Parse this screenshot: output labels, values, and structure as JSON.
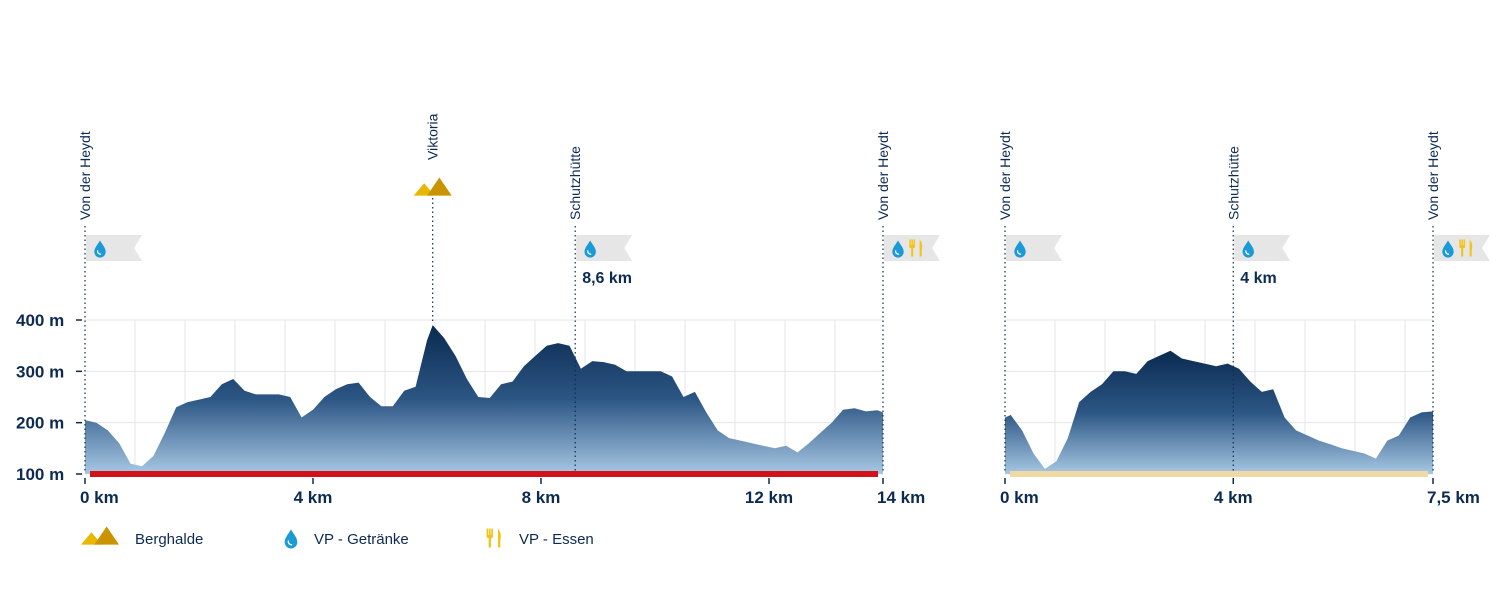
{
  "colors": {
    "profile_dark": "#0a2a50",
    "profile_light": "#8fb6d8",
    "text": "#0d2b52",
    "grid": "#e3e6ea",
    "route1_bar": "#d0121b",
    "route2_bar": "#efd9a4",
    "water": "#1a9ad6",
    "food": "#f2c418",
    "heap": "#d9a800",
    "flag": "#e6e6e6"
  },
  "legend": [
    {
      "icon": "heap",
      "label": "Berghalde"
    },
    {
      "icon": "water",
      "label": "VP - Getränke"
    },
    {
      "icon": "food",
      "label": "VP - Essen"
    }
  ],
  "chart_data": [
    {
      "type": "area",
      "title": "",
      "xlabel": "",
      "ylabel": "",
      "xlim": [
        0,
        14
      ],
      "ylim": [
        100,
        400
      ],
      "y_ticks": [
        {
          "value": 100,
          "label": "100 m"
        },
        {
          "value": 200,
          "label": "200 m"
        },
        {
          "value": 300,
          "label": "300 m"
        },
        {
          "value": 400,
          "label": "400 m"
        }
      ],
      "x_ticks": [
        {
          "value": 0,
          "label": "0 km"
        },
        {
          "value": 4,
          "label": "4 km"
        },
        {
          "value": 8,
          "label": "8 km"
        },
        {
          "value": 12,
          "label": "12 km"
        },
        {
          "value": 14,
          "label": "14 km"
        }
      ],
      "grid": true,
      "bar_color": "route1_bar",
      "markers": [
        {
          "km": 0,
          "name": "Von der Heydt",
          "icons": [
            "water"
          ],
          "km_label": ""
        },
        {
          "km": 6.1,
          "name": "Viktoria",
          "icons": [
            "heap"
          ],
          "km_label": ""
        },
        {
          "km": 8.6,
          "name": "Schutzhütte",
          "icons": [
            "water"
          ],
          "km_label": "8,6 km"
        },
        {
          "km": 14,
          "name": "Von der Heydt",
          "icons": [
            "water",
            "food"
          ],
          "km_label": ""
        }
      ],
      "x": [
        0,
        0.2,
        0.4,
        0.6,
        0.8,
        1.0,
        1.2,
        1.4,
        1.6,
        1.8,
        2.0,
        2.2,
        2.4,
        2.6,
        2.8,
        3.0,
        3.2,
        3.4,
        3.6,
        3.8,
        4.0,
        4.2,
        4.4,
        4.6,
        4.8,
        5.0,
        5.2,
        5.4,
        5.6,
        5.8,
        6.0,
        6.1,
        6.3,
        6.5,
        6.7,
        6.9,
        7.1,
        7.3,
        7.5,
        7.7,
        7.9,
        8.1,
        8.3,
        8.5,
        8.7,
        8.9,
        9.1,
        9.3,
        9.5,
        9.7,
        9.9,
        10.1,
        10.3,
        10.5,
        10.7,
        10.9,
        11.1,
        11.3,
        11.5,
        11.7,
        11.9,
        12.1,
        12.3,
        12.5,
        12.7,
        12.9,
        13.1,
        13.3,
        13.5,
        13.7,
        13.9,
        14.0
      ],
      "elevation": [
        205,
        200,
        185,
        160,
        120,
        115,
        135,
        180,
        230,
        240,
        245,
        250,
        275,
        285,
        262,
        255,
        255,
        255,
        250,
        210,
        225,
        250,
        265,
        275,
        278,
        250,
        232,
        232,
        262,
        270,
        360,
        390,
        365,
        330,
        285,
        250,
        248,
        275,
        280,
        310,
        330,
        350,
        355,
        350,
        305,
        320,
        318,
        313,
        300,
        300,
        300,
        300,
        290,
        250,
        260,
        220,
        185,
        170,
        165,
        160,
        155,
        150,
        155,
        142,
        160,
        180,
        200,
        225,
        228,
        222,
        224,
        220
      ]
    },
    {
      "type": "area",
      "title": "",
      "xlabel": "",
      "ylabel": "",
      "xlim": [
        0,
        7.5
      ],
      "ylim": [
        100,
        400
      ],
      "x_ticks": [
        {
          "value": 0,
          "label": "0 km"
        },
        {
          "value": 4,
          "label": "4 km"
        },
        {
          "value": 7.5,
          "label": "7,5 km"
        }
      ],
      "grid": true,
      "bar_color": "route2_bar",
      "markers": [
        {
          "km": 0,
          "name": "Von der Heydt",
          "icons": [
            "water"
          ],
          "km_label": ""
        },
        {
          "km": 4,
          "name": "Schutzhütte",
          "icons": [
            "water"
          ],
          "km_label": "4 km"
        },
        {
          "km": 7.5,
          "name": "Von der Heydt",
          "icons": [
            "water",
            "food"
          ],
          "km_label": ""
        }
      ],
      "x": [
        0,
        0.1,
        0.3,
        0.5,
        0.7,
        0.9,
        1.1,
        1.3,
        1.5,
        1.7,
        1.9,
        2.1,
        2.3,
        2.5,
        2.7,
        2.9,
        3.1,
        3.3,
        3.5,
        3.7,
        3.9,
        4.1,
        4.3,
        4.5,
        4.7,
        4.9,
        5.1,
        5.3,
        5.5,
        5.7,
        5.9,
        6.1,
        6.3,
        6.5,
        6.7,
        6.9,
        7.1,
        7.3,
        7.5
      ],
      "elevation": [
        210,
        215,
        185,
        140,
        110,
        125,
        170,
        240,
        260,
        275,
        300,
        300,
        295,
        320,
        330,
        340,
        325,
        320,
        315,
        310,
        315,
        305,
        280,
        260,
        265,
        210,
        185,
        175,
        165,
        158,
        150,
        145,
        140,
        130,
        165,
        175,
        210,
        220,
        222
      ]
    }
  ]
}
